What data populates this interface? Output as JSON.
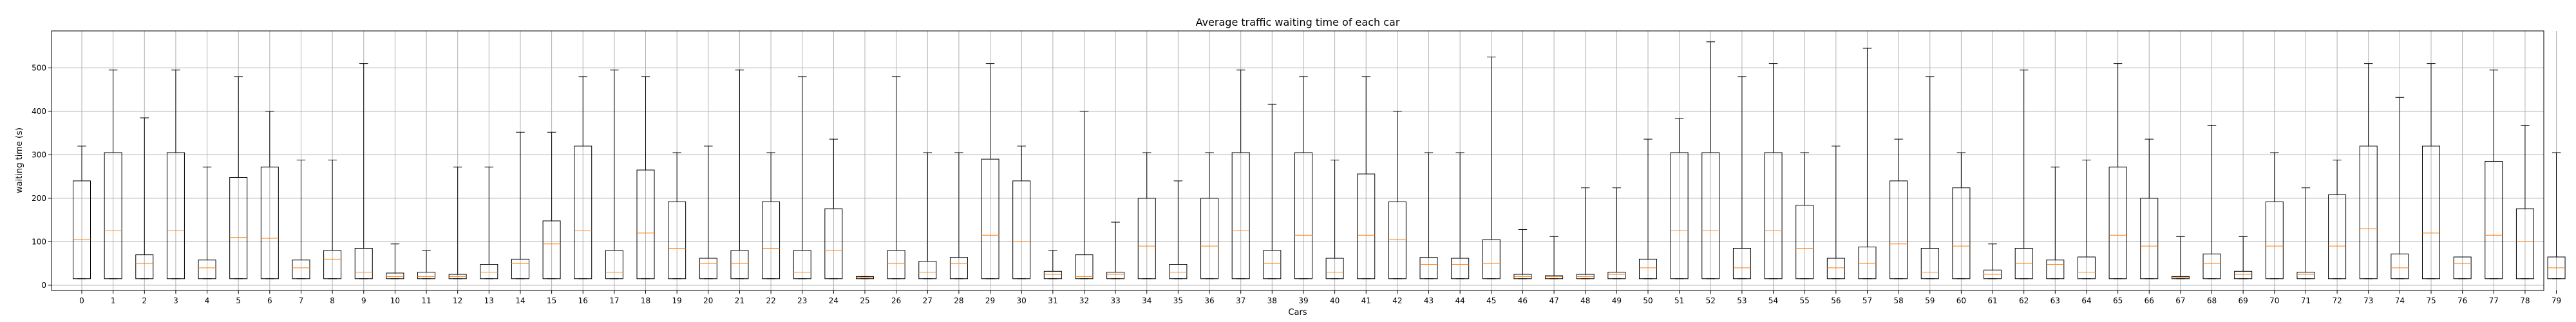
{
  "chart_data": {
    "type": "boxplot",
    "title": "Average traffic waiting time of each car",
    "xlabel": "Cars",
    "ylabel": "waiting time (s)",
    "ylim": [
      -12,
      585
    ],
    "yticks": [
      0,
      100,
      200,
      300,
      400,
      500
    ],
    "grid": true,
    "colors": {
      "box": "#000000",
      "median": "#ff7f0e",
      "grid": "#b0b0b0"
    },
    "categories": [
      "0",
      "1",
      "2",
      "3",
      "4",
      "5",
      "6",
      "7",
      "8",
      "9",
      "10",
      "11",
      "12",
      "13",
      "14",
      "15",
      "16",
      "17",
      "18",
      "19",
      "20",
      "21",
      "22",
      "23",
      "24",
      "25",
      "26",
      "27",
      "28",
      "29",
      "30",
      "31",
      "32",
      "33",
      "34",
      "35",
      "36",
      "37",
      "38",
      "39",
      "40",
      "41",
      "42",
      "43",
      "44",
      "45",
      "46",
      "47",
      "48",
      "49",
      "50",
      "51",
      "52",
      "53",
      "54",
      "55",
      "56",
      "57",
      "58",
      "59",
      "60",
      "61",
      "62",
      "63",
      "64",
      "65",
      "66",
      "67",
      "68",
      "69",
      "70",
      "71",
      "72",
      "73",
      "74",
      "75",
      "76",
      "77",
      "78",
      "79"
    ],
    "boxes": [
      {
        "wl": 15,
        "q1": 15,
        "med": 105,
        "q3": 240,
        "wh": 320
      },
      {
        "wl": 15,
        "q1": 15,
        "med": 125,
        "q3": 305,
        "wh": 495
      },
      {
        "wl": 15,
        "q1": 15,
        "med": 50,
        "q3": 70,
        "wh": 385
      },
      {
        "wl": 15,
        "q1": 15,
        "med": 125,
        "q3": 305,
        "wh": 495
      },
      {
        "wl": 15,
        "q1": 15,
        "med": 40,
        "q3": 58,
        "wh": 272
      },
      {
        "wl": 15,
        "q1": 15,
        "med": 110,
        "q3": 248,
        "wh": 480
      },
      {
        "wl": 15,
        "q1": 15,
        "med": 108,
        "q3": 272,
        "wh": 400
      },
      {
        "wl": 15,
        "q1": 15,
        "med": 40,
        "q3": 58,
        "wh": 288
      },
      {
        "wl": 15,
        "q1": 15,
        "med": 60,
        "q3": 80,
        "wh": 288
      },
      {
        "wl": 15,
        "q1": 15,
        "med": 30,
        "q3": 85,
        "wh": 510
      },
      {
        "wl": 15,
        "q1": 15,
        "med": 20,
        "q3": 28,
        "wh": 95
      },
      {
        "wl": 15,
        "q1": 15,
        "med": 20,
        "q3": 30,
        "wh": 80
      },
      {
        "wl": 15,
        "q1": 15,
        "med": 20,
        "q3": 25,
        "wh": 272
      },
      {
        "wl": 15,
        "q1": 15,
        "med": 30,
        "q3": 48,
        "wh": 272
      },
      {
        "wl": 15,
        "q1": 15,
        "med": 50,
        "q3": 60,
        "wh": 352
      },
      {
        "wl": 15,
        "q1": 15,
        "med": 95,
        "q3": 148,
        "wh": 352
      },
      {
        "wl": 15,
        "q1": 15,
        "med": 125,
        "q3": 320,
        "wh": 480
      },
      {
        "wl": 15,
        "q1": 15,
        "med": 30,
        "q3": 80,
        "wh": 495
      },
      {
        "wl": 15,
        "q1": 15,
        "med": 120,
        "q3": 265,
        "wh": 480
      },
      {
        "wl": 15,
        "q1": 15,
        "med": 85,
        "q3": 192,
        "wh": 305
      },
      {
        "wl": 15,
        "q1": 15,
        "med": 50,
        "q3": 62,
        "wh": 320
      },
      {
        "wl": 15,
        "q1": 15,
        "med": 50,
        "q3": 80,
        "wh": 495
      },
      {
        "wl": 15,
        "q1": 15,
        "med": 85,
        "q3": 192,
        "wh": 305
      },
      {
        "wl": 15,
        "q1": 15,
        "med": 30,
        "q3": 80,
        "wh": 480
      },
      {
        "wl": 15,
        "q1": 15,
        "med": 80,
        "q3": 176,
        "wh": 336
      },
      {
        "wl": 15,
        "q1": 15,
        "med": 18,
        "q3": 20,
        "wh": 20
      },
      {
        "wl": 15,
        "q1": 15,
        "med": 50,
        "q3": 80,
        "wh": 480
      },
      {
        "wl": 15,
        "q1": 15,
        "med": 30,
        "q3": 55,
        "wh": 305
      },
      {
        "wl": 15,
        "q1": 15,
        "med": 50,
        "q3": 64,
        "wh": 305
      },
      {
        "wl": 15,
        "q1": 15,
        "med": 115,
        "q3": 290,
        "wh": 510
      },
      {
        "wl": 15,
        "q1": 15,
        "med": 100,
        "q3": 240,
        "wh": 320
      },
      {
        "wl": 15,
        "q1": 15,
        "med": 25,
        "q3": 32,
        "wh": 80
      },
      {
        "wl": 15,
        "q1": 15,
        "med": 20,
        "q3": 70,
        "wh": 400
      },
      {
        "wl": 15,
        "q1": 15,
        "med": 25,
        "q3": 30,
        "wh": 145
      },
      {
        "wl": 15,
        "q1": 15,
        "med": 90,
        "q3": 200,
        "wh": 305
      },
      {
        "wl": 15,
        "q1": 15,
        "med": 30,
        "q3": 48,
        "wh": 240
      },
      {
        "wl": 15,
        "q1": 15,
        "med": 90,
        "q3": 200,
        "wh": 305
      },
      {
        "wl": 15,
        "q1": 15,
        "med": 125,
        "q3": 305,
        "wh": 495
      },
      {
        "wl": 15,
        "q1": 15,
        "med": 50,
        "q3": 80,
        "wh": 416
      },
      {
        "wl": 15,
        "q1": 15,
        "med": 115,
        "q3": 305,
        "wh": 480
      },
      {
        "wl": 15,
        "q1": 15,
        "med": 30,
        "q3": 62,
        "wh": 288
      },
      {
        "wl": 15,
        "q1": 15,
        "med": 115,
        "q3": 256,
        "wh": 480
      },
      {
        "wl": 15,
        "q1": 15,
        "med": 105,
        "q3": 192,
        "wh": 400
      },
      {
        "wl": 15,
        "q1": 15,
        "med": 48,
        "q3": 64,
        "wh": 305
      },
      {
        "wl": 15,
        "q1": 15,
        "med": 48,
        "q3": 62,
        "wh": 305
      },
      {
        "wl": 15,
        "q1": 15,
        "med": 50,
        "q3": 105,
        "wh": 525
      },
      {
        "wl": 15,
        "q1": 15,
        "med": 20,
        "q3": 25,
        "wh": 128
      },
      {
        "wl": 15,
        "q1": 15,
        "med": 20,
        "q3": 22,
        "wh": 112
      },
      {
        "wl": 15,
        "q1": 15,
        "med": 20,
        "q3": 25,
        "wh": 224
      },
      {
        "wl": 15,
        "q1": 15,
        "med": 25,
        "q3": 30,
        "wh": 224
      },
      {
        "wl": 15,
        "q1": 15,
        "med": 40,
        "q3": 60,
        "wh": 336
      },
      {
        "wl": 15,
        "q1": 15,
        "med": 125,
        "q3": 305,
        "wh": 384
      },
      {
        "wl": 15,
        "q1": 15,
        "med": 125,
        "q3": 305,
        "wh": 560
      },
      {
        "wl": 15,
        "q1": 15,
        "med": 40,
        "q3": 85,
        "wh": 480
      },
      {
        "wl": 15,
        "q1": 15,
        "med": 125,
        "q3": 305,
        "wh": 510
      },
      {
        "wl": 15,
        "q1": 15,
        "med": 85,
        "q3": 184,
        "wh": 305
      },
      {
        "wl": 15,
        "q1": 15,
        "med": 40,
        "q3": 62,
        "wh": 320
      },
      {
        "wl": 15,
        "q1": 15,
        "med": 50,
        "q3": 88,
        "wh": 545
      },
      {
        "wl": 15,
        "q1": 15,
        "med": 95,
        "q3": 240,
        "wh": 336
      },
      {
        "wl": 15,
        "q1": 15,
        "med": 30,
        "q3": 85,
        "wh": 480
      },
      {
        "wl": 15,
        "q1": 15,
        "med": 90,
        "q3": 224,
        "wh": 305
      },
      {
        "wl": 15,
        "q1": 15,
        "med": 25,
        "q3": 35,
        "wh": 95
      },
      {
        "wl": 15,
        "q1": 15,
        "med": 50,
        "q3": 85,
        "wh": 495
      },
      {
        "wl": 15,
        "q1": 15,
        "med": 48,
        "q3": 58,
        "wh": 272
      },
      {
        "wl": 15,
        "q1": 15,
        "med": 30,
        "q3": 65,
        "wh": 288
      },
      {
        "wl": 15,
        "q1": 15,
        "med": 115,
        "q3": 272,
        "wh": 510
      },
      {
        "wl": 15,
        "q1": 15,
        "med": 90,
        "q3": 200,
        "wh": 336
      },
      {
        "wl": 15,
        "q1": 15,
        "med": 18,
        "q3": 20,
        "wh": 112
      },
      {
        "wl": 15,
        "q1": 15,
        "med": 50,
        "q3": 72,
        "wh": 368
      },
      {
        "wl": 15,
        "q1": 15,
        "med": 25,
        "q3": 32,
        "wh": 112
      },
      {
        "wl": 15,
        "q1": 15,
        "med": 90,
        "q3": 192,
        "wh": 305
      },
      {
        "wl": 15,
        "q1": 15,
        "med": 25,
        "q3": 30,
        "wh": 224
      },
      {
        "wl": 15,
        "q1": 15,
        "med": 90,
        "q3": 208,
        "wh": 288
      },
      {
        "wl": 15,
        "q1": 15,
        "med": 130,
        "q3": 320,
        "wh": 510
      },
      {
        "wl": 15,
        "q1": 15,
        "med": 40,
        "q3": 72,
        "wh": 432
      },
      {
        "wl": 15,
        "q1": 15,
        "med": 120,
        "q3": 320,
        "wh": 510
      },
      {
        "wl": 15,
        "q1": 15,
        "med": 50,
        "q3": 65,
        "wh": 65
      },
      {
        "wl": 15,
        "q1": 15,
        "med": 115,
        "q3": 285,
        "wh": 495
      },
      {
        "wl": 15,
        "q1": 15,
        "med": 100,
        "q3": 176,
        "wh": 368
      },
      {
        "wl": 15,
        "q1": 15,
        "med": 40,
        "q3": 65,
        "wh": 305
      }
    ]
  }
}
